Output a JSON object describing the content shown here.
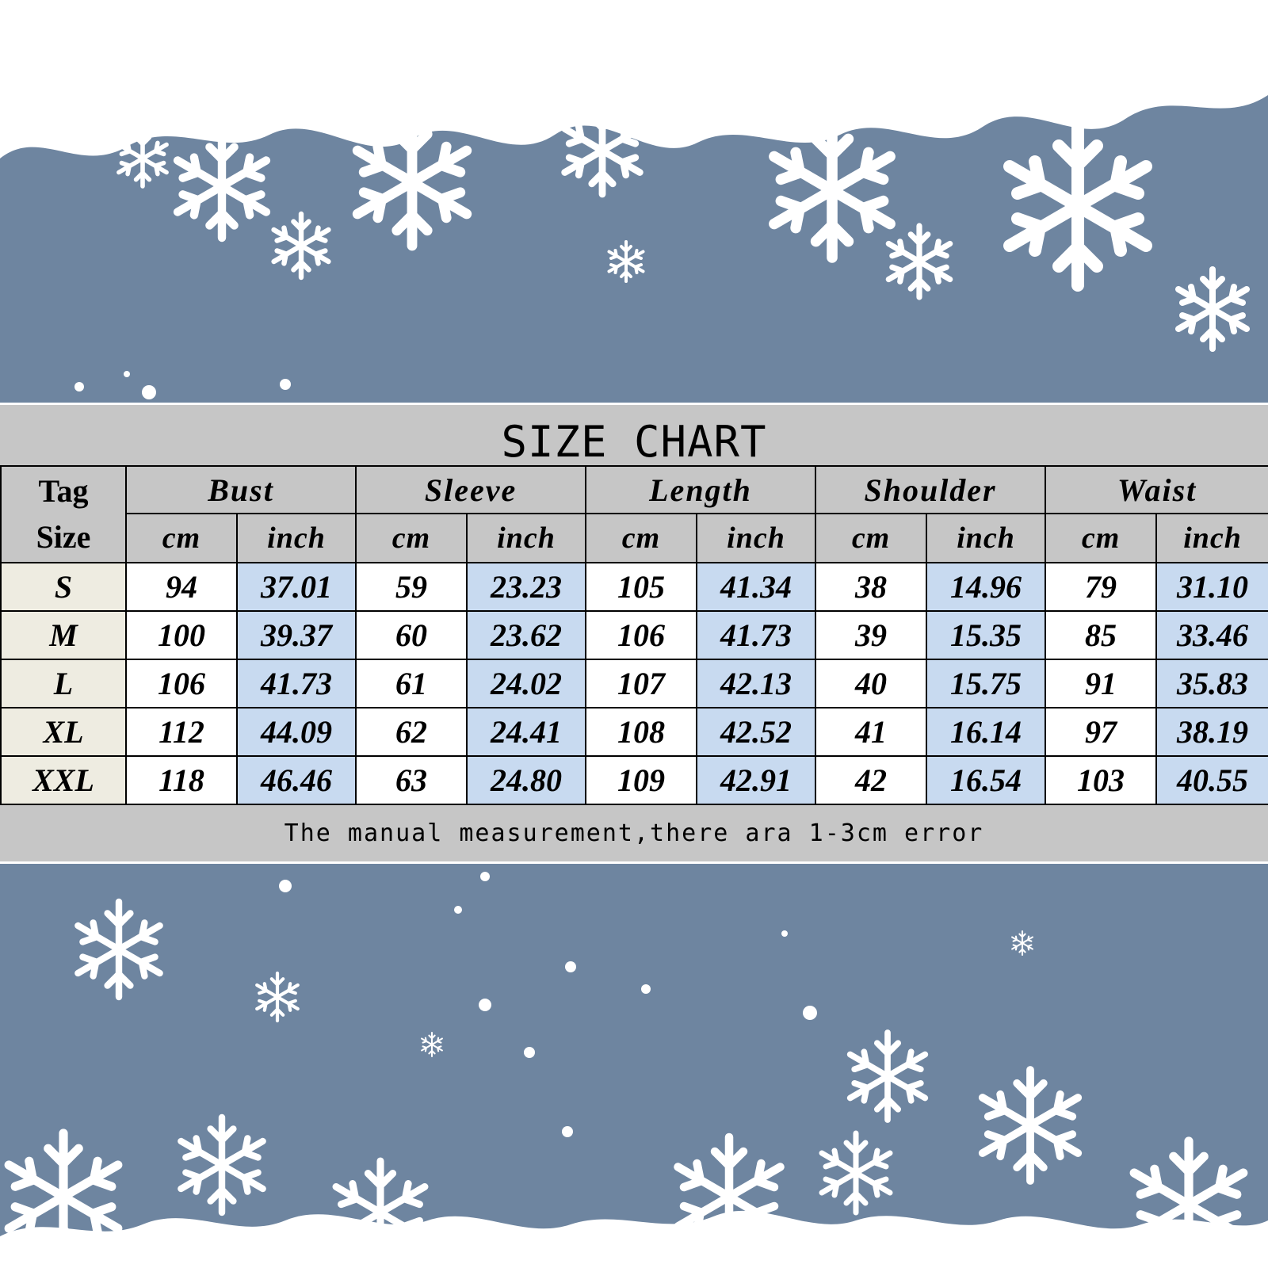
{
  "title": "SIZE CHART",
  "tag_size_label_line1": "Tag",
  "tag_size_label_line2": "Size",
  "groups": [
    {
      "label": "Bust"
    },
    {
      "label": "Sleeve"
    },
    {
      "label": "Length"
    },
    {
      "label": "Shoulder"
    },
    {
      "label": "Waist"
    }
  ],
  "units": {
    "cm": "cm",
    "inch": "inch"
  },
  "rows": [
    {
      "size": "S",
      "values": [
        "94",
        "37.01",
        "59",
        "23.23",
        "105",
        "41.34",
        "38",
        "14.96",
        "79",
        "31.10"
      ]
    },
    {
      "size": "M",
      "values": [
        "100",
        "39.37",
        "60",
        "23.62",
        "106",
        "41.73",
        "39",
        "15.35",
        "85",
        "33.46"
      ]
    },
    {
      "size": "L",
      "values": [
        "106",
        "41.73",
        "61",
        "24.02",
        "107",
        "42.13",
        "40",
        "15.75",
        "91",
        "35.83"
      ]
    },
    {
      "size": "XL",
      "values": [
        "112",
        "44.09",
        "62",
        "24.41",
        "108",
        "42.52",
        "41",
        "16.14",
        "97",
        "38.19"
      ]
    },
    {
      "size": "XXL",
      "values": [
        "118",
        "46.46",
        "63",
        "24.80",
        "109",
        "42.91",
        "42",
        "16.54",
        "103",
        "40.55"
      ]
    }
  ],
  "footnote": "The manual measurement,there ara 1-3cm error",
  "colors": {
    "background": "#6e85a0",
    "band": "#c6c6c6",
    "size_column": "#eeece1",
    "inch_column": "#c8daf0",
    "snow": "#ffffff"
  },
  "icons": [
    "snowflake-icon"
  ]
}
